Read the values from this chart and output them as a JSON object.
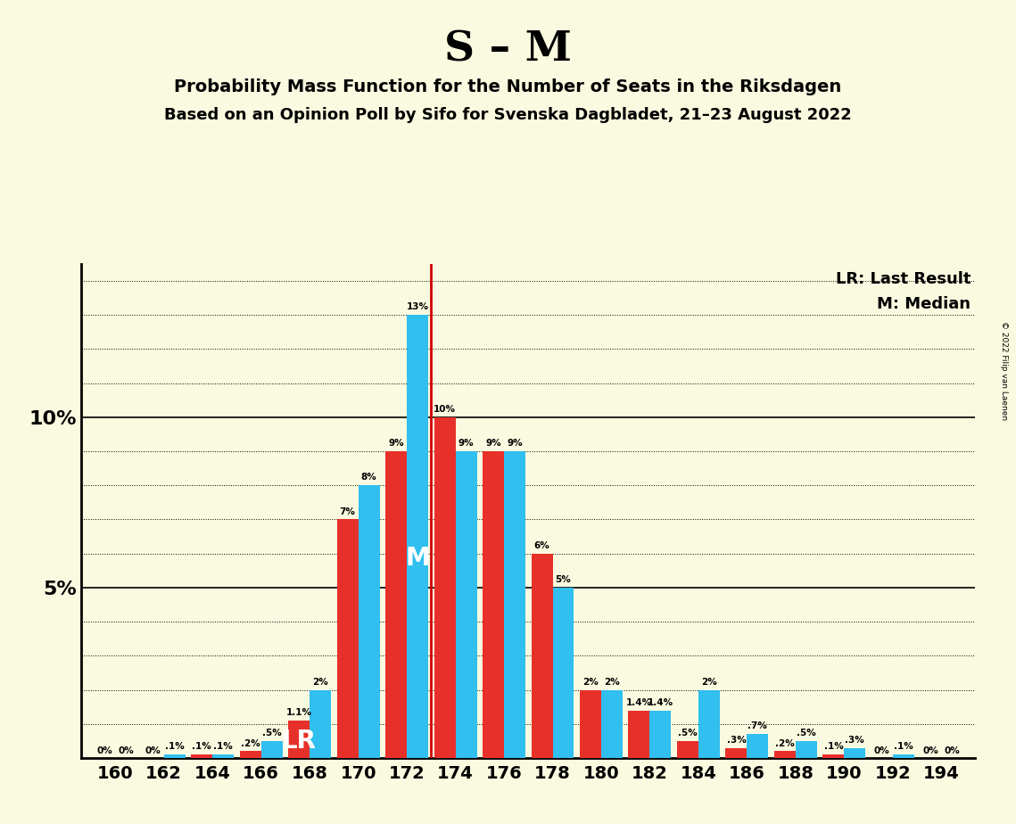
{
  "title": "S – M",
  "subtitle1": "Probability Mass Function for the Number of Seats in the Riksdagen",
  "subtitle2": "Based on an Opinion Poll by Sifo for Svenska Dagbladet, 21–23 August 2022",
  "copyright": "© 2022 Filip van Laenen",
  "legend_lr": "LR: Last Result",
  "legend_m": "M: Median",
  "background_color": "#FAFAE0",
  "bar_color_red": "#E8302A",
  "bar_color_blue": "#30BFEF",
  "vline_color": "#CC0000",
  "seats": [
    160,
    162,
    164,
    166,
    168,
    170,
    172,
    174,
    176,
    178,
    180,
    182,
    184,
    186,
    188,
    190,
    192,
    194
  ],
  "red_vals": [
    0.0,
    0.0,
    0.1,
    0.2,
    1.1,
    7.0,
    9.0,
    10.0,
    9.0,
    6.0,
    2.0,
    1.4,
    0.5,
    0.3,
    0.2,
    0.1,
    0.0,
    0.0
  ],
  "blue_vals": [
    0.0,
    0.1,
    0.1,
    0.5,
    2.0,
    8.0,
    13.0,
    9.0,
    9.0,
    5.0,
    2.0,
    1.4,
    2.0,
    0.7,
    0.5,
    0.3,
    0.1,
    0.0
  ],
  "lr_seat": 168,
  "median_seat": 172,
  "vline_after_seat_idx": 6,
  "ylim_max": 14.5
}
